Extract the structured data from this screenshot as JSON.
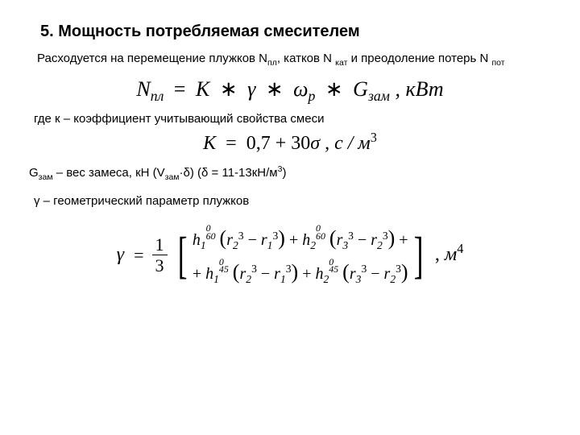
{
  "heading": "5. Мощность потребляемая смесителем",
  "p1_a": "Расходуется на перемещение плужков N",
  "p1_sub1": "пл",
  "p1_b": ", катков N ",
  "p1_sub2": "кат",
  "p1_c": " и преодоление потерь N ",
  "p1_sub3": "пот",
  "eq1_lhs_N": "N",
  "eq1_lhs_sub": "пл",
  "eq1_eq": " = ",
  "eq1_K": "K",
  "eq1_ast1": " ∗ ",
  "eq1_gamma": "γ",
  "eq1_ast2": " ∗ ",
  "eq1_omega": "ω",
  "eq1_omega_sub": "p",
  "eq1_ast3": " ∗ ",
  "eq1_G": "G",
  "eq1_G_sub": "зам",
  "eq1_tail": " ,   кВт",
  "p2": "где к – коэффициент учитывающий свойства смеси",
  "eq2_K": "K",
  "eq2_eq": " = ",
  "eq2_val": "0,7 + 30",
  "eq2_sigma": "σ",
  "eq2_tail_a": " ,   с / м",
  "eq2_tail_sup": "3",
  "p3_a": "G",
  "p3_sub1": "зам",
  "p3_b": " – вес замеса, кН (V",
  "p3_sub2": "зам",
  "p3_c": "·δ) (δ = 11-13кН/м",
  "p3_sup": "3",
  "p3_d": ")",
  "p4": "γ – геометрический параметр плужков",
  "gamma": "γ",
  "frac_num": "1",
  "frac_den": "3",
  "row1_a": "h",
  "h1_sub": "1",
  "exp60a": "60",
  "exp60b": "0",
  "lp": "(",
  "rp": ")",
  "r": "r",
  "r1": "1",
  "r2": "2",
  "r3": "3",
  "cube": "3",
  "minus": " − ",
  "plus": " + ",
  "h2_sub": "2",
  "exp45a": "45",
  "exp45b": "0",
  "row1_end": " +",
  "row2_start": "+ ",
  "tail_comma": ",",
  "tail_m": "   м",
  "tail_exp": "4"
}
